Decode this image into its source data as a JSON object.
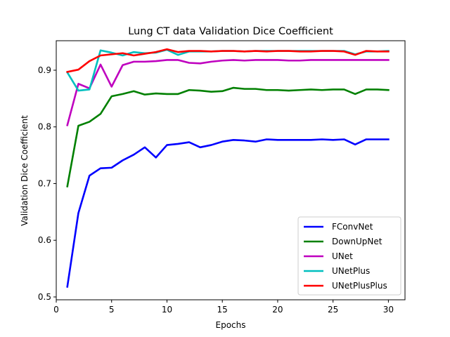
{
  "chart_data": {
    "type": "line",
    "title": "Lung CT data Validation Dice Coefficient",
    "xlabel": "Epochs",
    "ylabel": "Validation Dice Coefficient",
    "xlim": [
      0,
      31.5
    ],
    "ylim": [
      0.495,
      0.952
    ],
    "xticks": [
      0,
      5,
      10,
      15,
      20,
      25,
      30
    ],
    "yticks": [
      0.5,
      0.6,
      0.7,
      0.8,
      0.9
    ],
    "ytick_labels": [
      "0.5",
      "0.6",
      "0.7",
      "0.8",
      "0.9"
    ],
    "legend_position": "lower-right",
    "grid": false,
    "x": [
      1,
      2,
      3,
      4,
      5,
      6,
      7,
      8,
      9,
      10,
      11,
      12,
      13,
      14,
      15,
      16,
      17,
      18,
      19,
      20,
      21,
      22,
      23,
      24,
      25,
      26,
      27,
      28,
      29,
      30
    ],
    "series": [
      {
        "name": "FConvNet",
        "color": "#0000ff",
        "values": [
          0.518,
          0.648,
          0.714,
          0.727,
          0.728,
          0.741,
          0.751,
          0.764,
          0.746,
          0.768,
          0.77,
          0.773,
          0.764,
          0.768,
          0.774,
          0.777,
          0.776,
          0.774,
          0.778,
          0.777,
          0.777,
          0.777,
          0.777,
          0.778,
          0.777,
          0.778,
          0.769,
          0.778,
          0.778,
          0.778
        ]
      },
      {
        "name": "DownUpNet",
        "color": "#008000",
        "values": [
          0.695,
          0.802,
          0.809,
          0.823,
          0.854,
          0.858,
          0.863,
          0.857,
          0.859,
          0.858,
          0.858,
          0.865,
          0.864,
          0.862,
          0.863,
          0.869,
          0.867,
          0.867,
          0.865,
          0.865,
          0.864,
          0.865,
          0.866,
          0.865,
          0.866,
          0.866,
          0.858,
          0.866,
          0.866,
          0.865
        ]
      },
      {
        "name": "UNet",
        "color": "#bf00bf",
        "values": [
          0.803,
          0.876,
          0.868,
          0.91,
          0.871,
          0.909,
          0.915,
          0.915,
          0.916,
          0.918,
          0.918,
          0.913,
          0.912,
          0.915,
          0.917,
          0.918,
          0.917,
          0.918,
          0.918,
          0.918,
          0.917,
          0.917,
          0.918,
          0.918,
          0.918,
          0.918,
          0.918,
          0.918,
          0.918,
          0.918
        ]
      },
      {
        "name": "UNetPlus",
        "color": "#00bfbf",
        "values": [
          0.896,
          0.864,
          0.866,
          0.935,
          0.931,
          0.926,
          0.932,
          0.93,
          0.931,
          0.936,
          0.927,
          0.933,
          0.933,
          0.933,
          0.934,
          0.934,
          0.933,
          0.934,
          0.934,
          0.934,
          0.934,
          0.934,
          0.934,
          0.934,
          0.934,
          0.934,
          0.928,
          0.933,
          0.933,
          0.934
        ]
      },
      {
        "name": "UNetPlusPlus",
        "color": "#ff0000",
        "values": [
          0.897,
          0.901,
          0.916,
          0.926,
          0.928,
          0.93,
          0.926,
          0.929,
          0.932,
          0.937,
          0.932,
          0.934,
          0.934,
          0.933,
          0.934,
          0.934,
          0.933,
          0.934,
          0.933,
          0.934,
          0.934,
          0.933,
          0.933,
          0.934,
          0.934,
          0.933,
          0.927,
          0.934,
          0.933,
          0.933
        ]
      }
    ]
  }
}
